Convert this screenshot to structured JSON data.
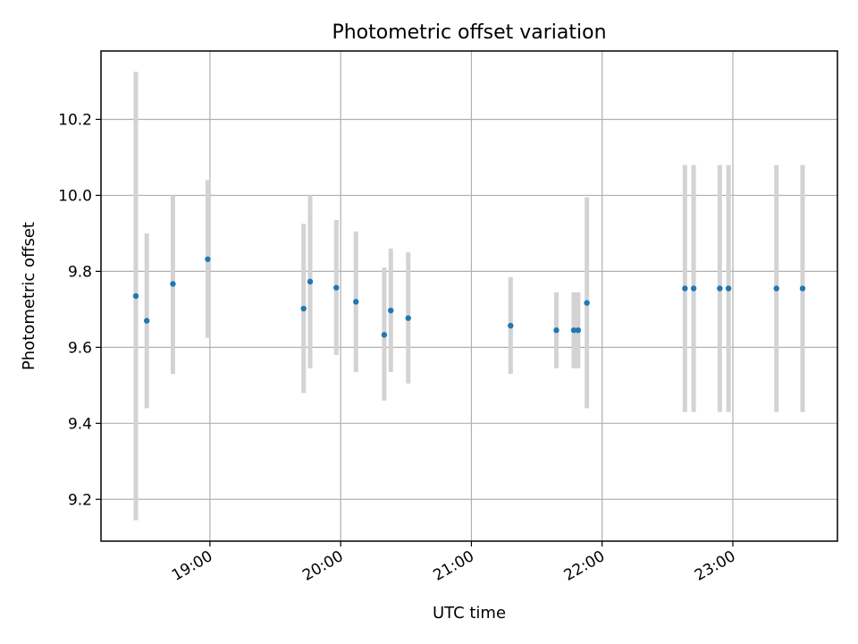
{
  "chart_data": {
    "type": "scatter",
    "title": "Photometric offset variation",
    "xlabel": "UTC time",
    "ylabel": "Photometric offset",
    "x_ticks": [
      "19:00",
      "20:00",
      "21:00",
      "22:00",
      "23:00"
    ],
    "y_ticks": [
      "9.2",
      "9.4",
      "9.6",
      "9.8",
      "10.0",
      "10.2"
    ],
    "xlim": [
      "18:10",
      "23:48"
    ],
    "ylim": [
      9.09,
      10.38
    ],
    "grid": true,
    "marker_color": "#1f77b4",
    "errorbar_color": "#d3d3d3",
    "points": [
      {
        "x": "18:26",
        "y": 9.735,
        "err_low": 9.145,
        "err_high": 10.325
      },
      {
        "x": "18:31",
        "y": 9.67,
        "err_low": 9.44,
        "err_high": 9.9
      },
      {
        "x": "18:43",
        "y": 9.767,
        "err_low": 9.53,
        "err_high": 10.0
      },
      {
        "x": "18:59",
        "y": 9.832,
        "err_low": 9.625,
        "err_high": 10.04
      },
      {
        "x": "19:43",
        "y": 9.702,
        "err_low": 9.48,
        "err_high": 9.925
      },
      {
        "x": "19:46",
        "y": 9.773,
        "err_low": 9.545,
        "err_high": 10.0
      },
      {
        "x": "19:58",
        "y": 9.757,
        "err_low": 9.58,
        "err_high": 9.935
      },
      {
        "x": "20:07",
        "y": 9.72,
        "err_low": 9.535,
        "err_high": 9.905
      },
      {
        "x": "20:20",
        "y": 9.633,
        "err_low": 9.46,
        "err_high": 9.81
      },
      {
        "x": "20:23",
        "y": 9.697,
        "err_low": 9.535,
        "err_high": 9.86
      },
      {
        "x": "20:31",
        "y": 9.677,
        "err_low": 9.505,
        "err_high": 9.85
      },
      {
        "x": "21:18",
        "y": 9.657,
        "err_low": 9.53,
        "err_high": 9.785
      },
      {
        "x": "21:39",
        "y": 9.645,
        "err_low": 9.545,
        "err_high": 9.745
      },
      {
        "x": "21:47",
        "y": 9.645,
        "err_low": 9.545,
        "err_high": 9.745
      },
      {
        "x": "21:49",
        "y": 9.645,
        "err_low": 9.545,
        "err_high": 9.745
      },
      {
        "x": "21:53",
        "y": 9.717,
        "err_low": 9.44,
        "err_high": 9.995
      },
      {
        "x": "22:38",
        "y": 9.755,
        "err_low": 9.43,
        "err_high": 10.08
      },
      {
        "x": "22:42",
        "y": 9.755,
        "err_low": 9.43,
        "err_high": 10.08
      },
      {
        "x": "22:54",
        "y": 9.755,
        "err_low": 9.43,
        "err_high": 10.08
      },
      {
        "x": "22:58",
        "y": 9.755,
        "err_low": 9.43,
        "err_high": 10.08
      },
      {
        "x": "23:20",
        "y": 9.755,
        "err_low": 9.43,
        "err_high": 10.08
      },
      {
        "x": "23:32",
        "y": 9.755,
        "err_low": 9.43,
        "err_high": 10.08
      }
    ]
  }
}
